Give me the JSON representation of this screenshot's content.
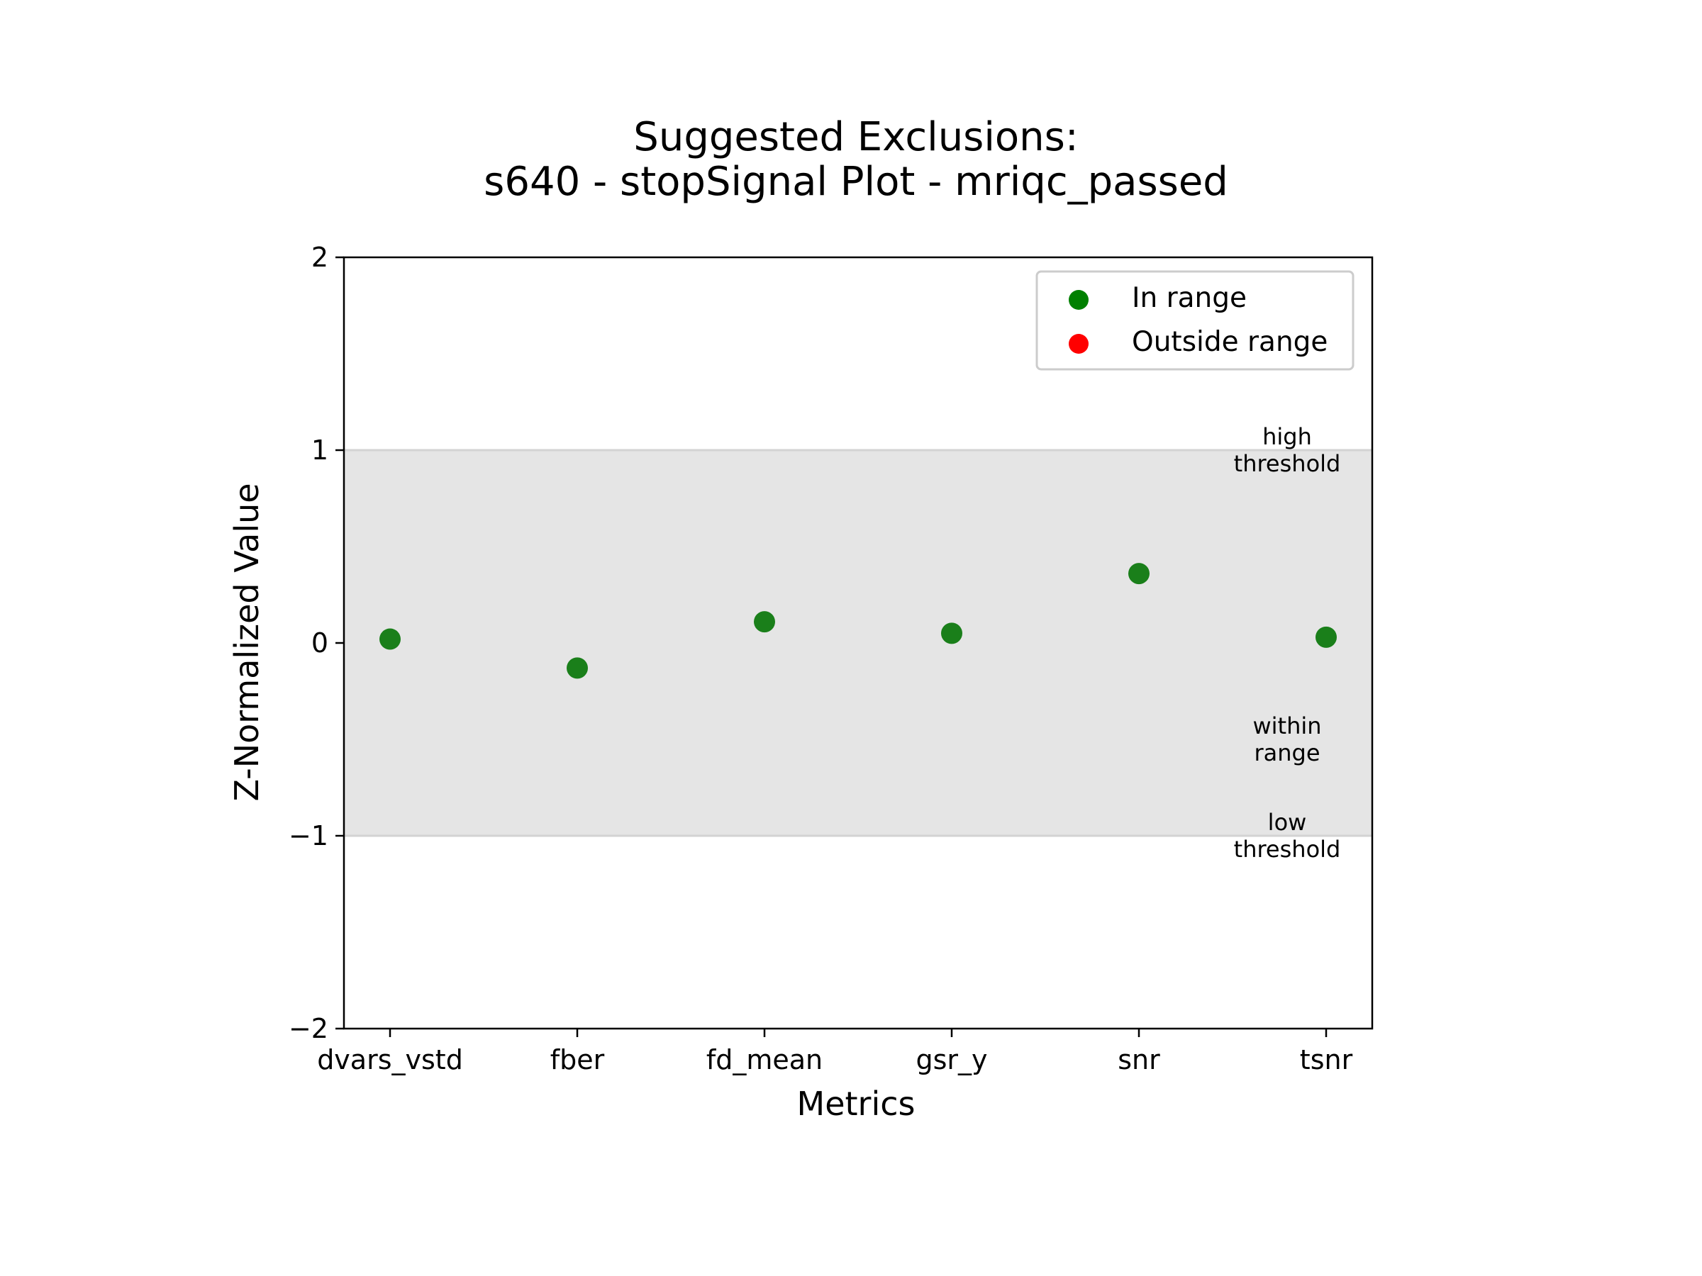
{
  "chart_data": {
    "type": "scatter",
    "title_lines": [
      "Suggested Exclusions:",
      "s640 - stopSignal Plot - mriqc_passed"
    ],
    "xlabel": "Metrics",
    "ylabel": "Z-Normalized Value",
    "categories": [
      "dvars_vstd",
      "fber",
      "fd_mean",
      "gsr_y",
      "snr",
      "tsnr"
    ],
    "values": [
      0.02,
      -0.13,
      0.11,
      0.05,
      0.36,
      0.03
    ],
    "ylim": [
      -2,
      2
    ],
    "yticks": [
      -2,
      -1,
      0,
      1,
      2
    ],
    "ytick_labels": [
      "−2",
      "−1",
      "0",
      "1",
      "2"
    ],
    "range_band": [
      -1,
      1
    ],
    "annotations": [
      {
        "lines": [
          "high",
          "threshold"
        ],
        "y": 1
      },
      {
        "lines": [
          "within",
          "range"
        ],
        "y": -0.5
      },
      {
        "lines": [
          "low",
          "threshold"
        ],
        "y": -1
      }
    ],
    "legend": {
      "placement": "top-right",
      "entries": [
        {
          "label": "In range",
          "color": "#008000"
        },
        {
          "label": "Outside range",
          "color": "#ff0000"
        }
      ]
    },
    "colors": {
      "in_range": "#1a7f1a",
      "outside_range": "#ff0000",
      "band": "#e5e5e5",
      "threshold_line": "#d3d3d3"
    },
    "grid": false
  }
}
